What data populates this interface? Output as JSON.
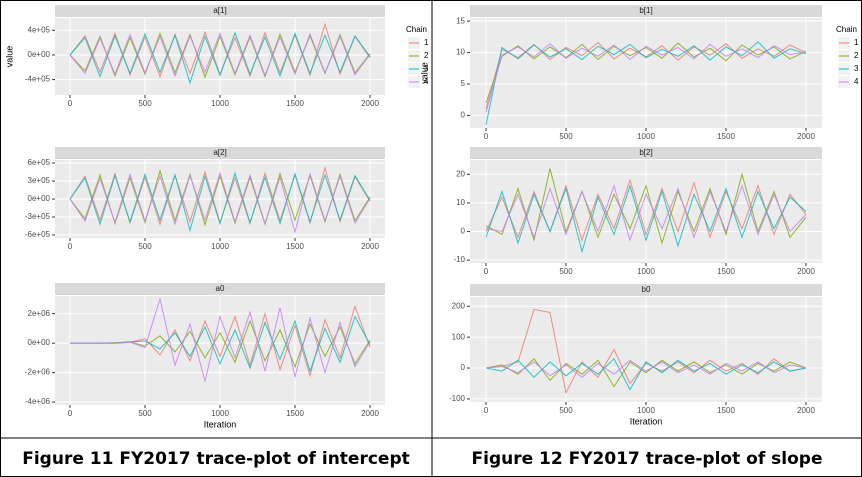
{
  "chart_data": [
    {
      "type": "line",
      "title": "a[1]",
      "y_label": "value",
      "legend_title": "Chain",
      "x": [
        0,
        100,
        200,
        300,
        400,
        500,
        600,
        700,
        800,
        900,
        1000,
        1100,
        1200,
        1300,
        1400,
        1500,
        1600,
        1700,
        1800,
        1900,
        2000
      ],
      "xlim": [
        -100,
        2100
      ],
      "xticks": [
        0,
        500,
        1000,
        1500,
        2000
      ],
      "ylim": [
        -650000,
        600000
      ],
      "yticks": [
        {
          "value": -400000,
          "label": "-4e+05"
        },
        {
          "value": 0,
          "label": "0e+00"
        },
        {
          "value": 400000,
          "label": "4e+05"
        }
      ],
      "series": [
        {
          "name": "1",
          "color": "#F8766D",
          "values": [
            0,
            310000,
            -280000,
            350000,
            -320000,
            290000,
            -350000,
            330000,
            -300000,
            370000,
            -310000,
            280000,
            -340000,
            360000,
            -290000,
            320000,
            -330000,
            500000,
            -310000,
            300000,
            -50000
          ]
        },
        {
          "name": "2",
          "color": "#7CAE00",
          "values": [
            0,
            -260000,
            300000,
            -340000,
            280000,
            -310000,
            350000,
            -290000,
            330000,
            -360000,
            300000,
            -320000,
            290000,
            -350000,
            340000,
            -280000,
            310000,
            -300000,
            330000,
            -290000,
            20000
          ]
        },
        {
          "name": "3",
          "color": "#00BFC4",
          "values": [
            0,
            280000,
            -350000,
            310000,
            -300000,
            340000,
            -280000,
            320000,
            -450000,
            300000,
            -330000,
            360000,
            -310000,
            290000,
            -340000,
            350000,
            -300000,
            320000,
            -280000,
            310000,
            -30000
          ]
        },
        {
          "name": "4",
          "color": "#C77CFF",
          "values": [
            0,
            -300000,
            270000,
            -310000,
            330000,
            -290000,
            300000,
            -340000,
            310000,
            -280000,
            350000,
            -300000,
            320000,
            -330000,
            290000,
            -310000,
            340000,
            -290000,
            300000,
            -320000,
            10000
          ]
        }
      ]
    },
    {
      "type": "line",
      "title": "a[2]",
      "x": [
        0,
        100,
        200,
        300,
        400,
        500,
        600,
        700,
        800,
        900,
        1000,
        1100,
        1200,
        1300,
        1400,
        1500,
        1600,
        1700,
        1800,
        1900,
        2000
      ],
      "xlim": [
        -100,
        2100
      ],
      "xticks": [
        0,
        500,
        1000,
        1500,
        2000
      ],
      "ylim": [
        -650000,
        650000
      ],
      "yticks": [
        {
          "value": -600000,
          "label": "-6e+05"
        },
        {
          "value": -300000,
          "label": "-3e+05"
        },
        {
          "value": 0,
          "label": "0e+00"
        },
        {
          "value": 300000,
          "label": "3e+05"
        },
        {
          "value": 600000,
          "label": "6e+05"
        }
      ],
      "series": [
        {
          "name": "1",
          "color": "#F8766D",
          "values": [
            0,
            380000,
            -350000,
            420000,
            -400000,
            360000,
            -420000,
            400000,
            -380000,
            450000,
            -390000,
            350000,
            -410000,
            430000,
            -360000,
            400000,
            -400000,
            520000,
            -380000,
            370000,
            -40000
          ]
        },
        {
          "name": "2",
          "color": "#7CAE00",
          "values": [
            0,
            -330000,
            400000,
            -410000,
            350000,
            -390000,
            470000,
            -360000,
            410000,
            -430000,
            380000,
            -400000,
            360000,
            -420000,
            420000,
            -350000,
            390000,
            -380000,
            410000,
            -360000,
            30000
          ]
        },
        {
          "name": "3",
          "color": "#00BFC4",
          "values": [
            0,
            350000,
            -420000,
            390000,
            -380000,
            410000,
            -350000,
            400000,
            -520000,
            380000,
            -410000,
            430000,
            -390000,
            360000,
            -410000,
            420000,
            -380000,
            400000,
            -350000,
            390000,
            -20000
          ]
        },
        {
          "name": "4",
          "color": "#C77CFF",
          "values": [
            0,
            -370000,
            340000,
            -390000,
            410000,
            -360000,
            380000,
            -420000,
            390000,
            -350000,
            430000,
            -380000,
            400000,
            -410000,
            360000,
            -550000,
            420000,
            -360000,
            380000,
            -400000,
            10000
          ]
        }
      ]
    },
    {
      "type": "line",
      "title": "a0",
      "x_label": "Iteration",
      "x": [
        0,
        100,
        200,
        300,
        400,
        500,
        600,
        700,
        800,
        900,
        1000,
        1100,
        1200,
        1300,
        1400,
        1500,
        1600,
        1700,
        1800,
        1900,
        2000
      ],
      "xlim": [
        -100,
        2100
      ],
      "xticks": [
        0,
        500,
        1000,
        1500,
        2000
      ],
      "ylim": [
        -4200000,
        3200000
      ],
      "yticks": [
        {
          "value": -4000000,
          "label": "-4e+06"
        },
        {
          "value": -2000000,
          "label": "-2e+06"
        },
        {
          "value": 0,
          "label": "0e+00"
        },
        {
          "value": 2000000,
          "label": "2e+06"
        }
      ],
      "series": [
        {
          "name": "1",
          "color": "#F8766D",
          "values": [
            0,
            0,
            0,
            10000,
            50000,
            300000,
            -800000,
            900000,
            -1200000,
            1500000,
            -900000,
            1800000,
            -1500000,
            2000000,
            -1800000,
            1200000,
            -2200000,
            1600000,
            -1000000,
            2500000,
            -300000
          ]
        },
        {
          "name": "2",
          "color": "#7CAE00",
          "values": [
            0,
            0,
            -5000,
            20000,
            100000,
            -200000,
            500000,
            -600000,
            800000,
            -1000000,
            700000,
            -1300000,
            1500000,
            -1200000,
            900000,
            -1600000,
            1300000,
            -900000,
            1100000,
            -1400000,
            200000
          ]
        },
        {
          "name": "3",
          "color": "#00BFC4",
          "values": [
            0,
            0,
            5000,
            -10000,
            80000,
            150000,
            -400000,
            700000,
            -900000,
            1100000,
            -1400000,
            900000,
            -1700000,
            1400000,
            -1100000,
            1500000,
            -1900000,
            1000000,
            -1300000,
            1800000,
            -100000
          ]
        },
        {
          "name": "4",
          "color": "#C77CFF",
          "values": [
            0,
            0,
            0,
            -20000,
            60000,
            -300000,
            3000000,
            -1500000,
            1300000,
            -2600000,
            1800000,
            -1000000,
            2100000,
            -1900000,
            2400000,
            -2300000,
            1700000,
            -2000000,
            1400000,
            -1600000,
            100000
          ]
        }
      ]
    },
    {
      "type": "line",
      "title": "b[1]",
      "y_label": "value",
      "legend_title": "Chain",
      "x": [
        0,
        100,
        200,
        300,
        400,
        500,
        600,
        700,
        800,
        900,
        1000,
        1100,
        1200,
        1300,
        1400,
        1500,
        1600,
        1700,
        1800,
        1900,
        2000
      ],
      "xlim": [
        -100,
        2100
      ],
      "xticks": [
        0,
        500,
        1000,
        1500,
        2000
      ],
      "ylim": [
        -2,
        15.5
      ],
      "yticks": [
        0,
        5,
        10,
        15
      ],
      "series": [
        {
          "name": "1",
          "color": "#F8766D",
          "values": [
            1,
            10.5,
            9.2,
            11.3,
            8.9,
            10.8,
            9.5,
            11.6,
            9.0,
            10.7,
            9.3,
            11.1,
            8.8,
            10.9,
            9.6,
            11.4,
            9.1,
            10.6,
            9.4,
            11.2,
            10
          ]
        },
        {
          "name": "2",
          "color": "#7CAE00",
          "values": [
            2,
            9.4,
            11.1,
            9.0,
            10.9,
            9.2,
            11.3,
            8.9,
            11.0,
            9.5,
            10.8,
            9.1,
            11.5,
            9.3,
            10.7,
            8.7,
            11.2,
            9.6,
            10.9,
            9.0,
            10.2
          ]
        },
        {
          "name": "3",
          "color": "#00BFC4",
          "values": [
            -1.5,
            10.8,
            9.0,
            11.2,
            9.3,
            10.6,
            8.9,
            11.0,
            9.7,
            11.3,
            9.2,
            10.5,
            9.4,
            11.1,
            8.8,
            10.9,
            9.5,
            11.7,
            9.1,
            10.6,
            9.8
          ]
        },
        {
          "name": "4",
          "color": "#C77CFF",
          "values": [
            0.5,
            9.6,
            10.9,
            9.3,
            11.4,
            9.1,
            10.7,
            9.4,
            11.2,
            8.9,
            11.0,
            9.6,
            10.8,
            9.0,
            11.3,
            9.4,
            10.6,
            9.2,
            11.1,
            9.7,
            10.1
          ]
        }
      ]
    },
    {
      "type": "line",
      "title": "b[2]",
      "x": [
        0,
        100,
        200,
        300,
        400,
        500,
        600,
        700,
        800,
        900,
        1000,
        1100,
        1200,
        1300,
        1400,
        1500,
        1600,
        1700,
        1800,
        1900,
        2000
      ],
      "xlim": [
        -100,
        2100
      ],
      "xticks": [
        0,
        500,
        1000,
        1500,
        2000
      ],
      "ylim": [
        -11,
        25
      ],
      "yticks": [
        -10,
        0,
        10,
        20
      ],
      "series": [
        {
          "name": "1",
          "color": "#F8766D",
          "values": [
            0,
            12,
            -2,
            14,
            0,
            16,
            -3,
            13,
            1,
            18,
            -1,
            15,
            0,
            17,
            -2,
            14,
            1,
            16,
            -1,
            13,
            6
          ]
        },
        {
          "name": "2",
          "color": "#7CAE00",
          "values": [
            2,
            -1,
            15,
            -3,
            22,
            0,
            14,
            -2,
            13,
            1,
            16,
            -4,
            14,
            0,
            15,
            -1,
            20,
            0,
            14,
            -2,
            5
          ]
        },
        {
          "name": "3",
          "color": "#00BFC4",
          "values": [
            -2,
            14,
            -4,
            13,
            0,
            15,
            -7,
            12,
            -1,
            16,
            -3,
            14,
            -5,
            13,
            0,
            15,
            -2,
            14,
            1,
            12,
            7
          ]
        },
        {
          "name": "4",
          "color": "#C77CFF",
          "values": [
            1,
            0,
            13,
            -2,
            15,
            -1,
            14,
            0,
            16,
            -3,
            13,
            1,
            15,
            -2,
            14,
            0,
            16,
            -1,
            13,
            0,
            6
          ]
        }
      ]
    },
    {
      "type": "line",
      "title": "b0",
      "x_label": "Iteration",
      "x": [
        0,
        100,
        200,
        300,
        400,
        500,
        600,
        700,
        800,
        900,
        1000,
        1100,
        1200,
        1300,
        1400,
        1500,
        1600,
        1700,
        1800,
        1900,
        2000
      ],
      "xlim": [
        -100,
        2100
      ],
      "xticks": [
        0,
        500,
        1000,
        1500,
        2000
      ],
      "ylim": [
        -110,
        230
      ],
      "yticks": [
        -100,
        0,
        100,
        200
      ],
      "series": [
        {
          "name": "1",
          "color": "#F8766D",
          "values": [
            0,
            5,
            20,
            190,
            180,
            -80,
            20,
            -30,
            60,
            -50,
            15,
            -10,
            20,
            -15,
            25,
            -10,
            15,
            -20,
            30,
            -10,
            0
          ]
        },
        {
          "name": "2",
          "color": "#7CAE00",
          "values": [
            0,
            10,
            -20,
            30,
            -40,
            15,
            -20,
            25,
            -60,
            20,
            -15,
            25,
            -10,
            20,
            -15,
            10,
            -20,
            15,
            -10,
            20,
            0
          ]
        },
        {
          "name": "3",
          "color": "#00BFC4",
          "values": [
            0,
            -10,
            25,
            -30,
            20,
            -25,
            15,
            -20,
            30,
            -70,
            20,
            -15,
            25,
            -10,
            15,
            -20,
            10,
            -15,
            20,
            -10,
            0
          ]
        },
        {
          "name": "4",
          "color": "#C77CFF",
          "values": [
            0,
            5,
            -15,
            20,
            -25,
            10,
            -30,
            15,
            -20,
            25,
            -10,
            20,
            -15,
            10,
            -20,
            15,
            -10,
            20,
            -15,
            10,
            0
          ]
        }
      ]
    }
  ],
  "captions": [
    "Figure 11 FY2017 trace-plot of intercept",
    "Figure 12 FY2017 trace-plot of slope"
  ]
}
